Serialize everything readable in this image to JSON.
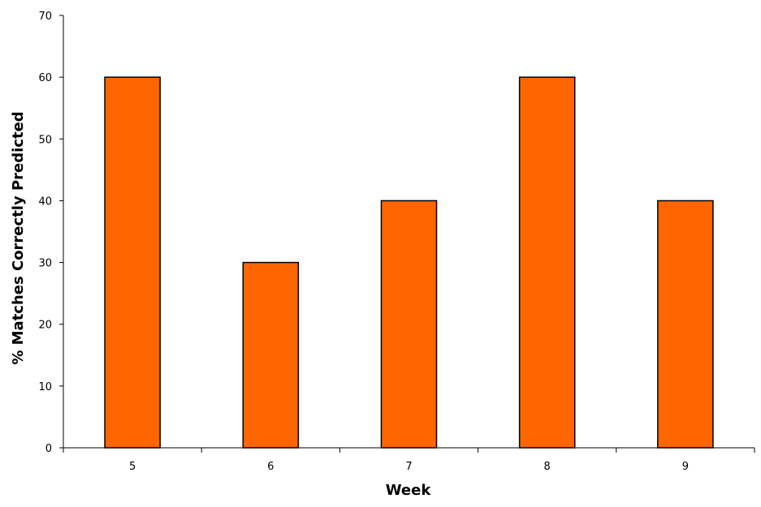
{
  "chart_data": {
    "type": "bar",
    "title": "",
    "xlabel": "Week",
    "ylabel": "% Matches Correctly Predicted",
    "categories": [
      "5",
      "6",
      "7",
      "8",
      "9"
    ],
    "values": [
      60,
      30,
      40,
      60,
      40
    ],
    "ylim": [
      0,
      70
    ],
    "yticks": [
      0,
      10,
      20,
      30,
      40,
      50,
      60,
      70
    ],
    "grid": false,
    "legend": "none",
    "bar_color": "#ff6600",
    "bar_edge_color": "#000000"
  }
}
